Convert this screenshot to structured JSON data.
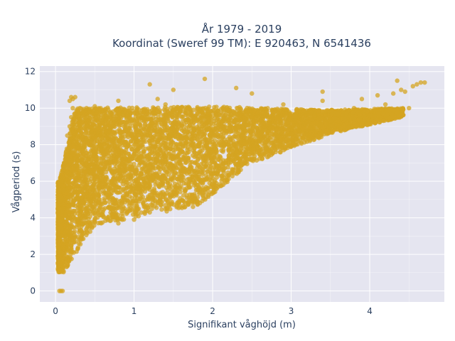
{
  "chart_data": {
    "type": "scatter",
    "title_line1": "År 1979 - 2019",
    "title_line2": "Koordinat (Sweref 99 TM): E 920463, N 6541436",
    "xlabel": "Signifikant våghöjd (m)",
    "ylabel": "Vågperiod (s)",
    "xlim": [
      -0.2,
      4.95
    ],
    "ylim": [
      -0.6,
      12.3
    ],
    "xticks": [
      0,
      1,
      2,
      3,
      4
    ],
    "yticks": [
      0,
      2,
      4,
      6,
      8,
      10,
      12
    ],
    "grid": true,
    "legend": "none",
    "colors": {
      "marker": "#d4a421",
      "plot_bg": "#e5e5f0",
      "grid": "#ffffff",
      "text": "#2a3f5f"
    },
    "series": [
      {
        "marker": "circle",
        "points": [
          [
            0.05,
            0.0
          ],
          [
            0.07,
            0.0
          ],
          [
            0.09,
            0.0
          ],
          [
            0.04,
            1.2
          ],
          [
            0.06,
            1.5
          ],
          [
            0.08,
            1.1
          ],
          [
            0.1,
            1.3
          ],
          [
            0.05,
            2.0
          ],
          [
            0.1,
            2.5
          ],
          [
            0.12,
            3.0
          ],
          [
            0.07,
            3.5
          ],
          [
            0.15,
            4.0
          ],
          [
            0.05,
            4.5
          ],
          [
            0.2,
            5.0
          ],
          [
            0.1,
            5.5
          ],
          [
            0.25,
            6.0
          ],
          [
            0.15,
            6.5
          ],
          [
            0.12,
            7.0
          ],
          [
            0.2,
            7.8
          ],
          [
            0.15,
            8.5
          ],
          [
            0.18,
            9.0
          ],
          [
            0.2,
            9.5
          ],
          [
            0.22,
            10.0
          ],
          [
            0.22,
            10.5
          ],
          [
            0.25,
            10.6
          ],
          [
            0.3,
            3.2
          ],
          [
            0.35,
            4.5
          ],
          [
            0.4,
            5.5
          ],
          [
            0.45,
            6.5
          ],
          [
            0.5,
            7.2
          ],
          [
            0.3,
            8.0
          ],
          [
            0.4,
            9.0
          ],
          [
            0.5,
            3.8
          ],
          [
            0.55,
            5.0
          ],
          [
            0.6,
            6.0
          ],
          [
            0.65,
            7.0
          ],
          [
            0.7,
            8.2
          ],
          [
            0.75,
            9.2
          ],
          [
            0.8,
            3.7
          ],
          [
            0.85,
            4.8
          ],
          [
            0.9,
            5.8
          ],
          [
            0.95,
            6.8
          ],
          [
            1.0,
            7.5
          ],
          [
            1.05,
            8.5
          ],
          [
            1.1,
            9.5
          ],
          [
            1.0,
            3.9
          ],
          [
            1.2,
            4.3
          ],
          [
            1.3,
            5.2
          ],
          [
            1.35,
            6.2
          ],
          [
            1.4,
            7.2
          ],
          [
            1.45,
            8.4
          ],
          [
            1.5,
            9.2
          ],
          [
            1.3,
            10.5
          ],
          [
            1.5,
            11.0
          ],
          [
            1.65,
            4.6
          ],
          [
            1.75,
            4.6
          ],
          [
            1.8,
            4.9
          ],
          [
            1.7,
            6.5
          ],
          [
            1.8,
            7.5
          ],
          [
            1.9,
            8.6
          ],
          [
            1.95,
            9.3
          ],
          [
            1.9,
            11.6
          ],
          [
            2.0,
            6.6
          ],
          [
            2.1,
            7.3
          ],
          [
            2.2,
            8.0
          ],
          [
            2.3,
            8.8
          ],
          [
            2.4,
            9.5
          ],
          [
            2.5,
            7.6
          ],
          [
            2.6,
            8.2
          ],
          [
            2.7,
            8.7
          ],
          [
            2.8,
            9.2
          ],
          [
            2.9,
            10.2
          ],
          [
            2.5,
            10.8
          ],
          [
            3.0,
            8.3
          ],
          [
            3.1,
            8.8
          ],
          [
            3.2,
            9.2
          ],
          [
            3.3,
            9.6
          ],
          [
            3.4,
            10.4
          ],
          [
            3.5,
            8.8
          ],
          [
            3.6,
            9.3
          ],
          [
            3.7,
            9.7
          ],
          [
            3.8,
            10.0
          ],
          [
            3.9,
            10.5
          ],
          [
            4.0,
            9.6
          ],
          [
            4.1,
            9.9
          ],
          [
            4.2,
            10.2
          ],
          [
            4.3,
            10.8
          ],
          [
            4.4,
            11.0
          ],
          [
            4.45,
            10.9
          ],
          [
            4.5,
            10.0
          ],
          [
            4.55,
            11.2
          ],
          [
            4.6,
            11.3
          ],
          [
            4.65,
            11.4
          ],
          [
            4.7,
            11.4
          ],
          [
            0.18,
            10.4
          ],
          [
            0.2,
            10.6
          ],
          [
            0.5,
            10.1
          ],
          [
            0.8,
            10.4
          ],
          [
            1.2,
            11.3
          ],
          [
            1.4,
            10.2
          ],
          [
            2.3,
            11.1
          ],
          [
            3.4,
            10.9
          ],
          [
            4.1,
            10.7
          ],
          [
            4.35,
            11.5
          ]
        ]
      }
    ]
  }
}
